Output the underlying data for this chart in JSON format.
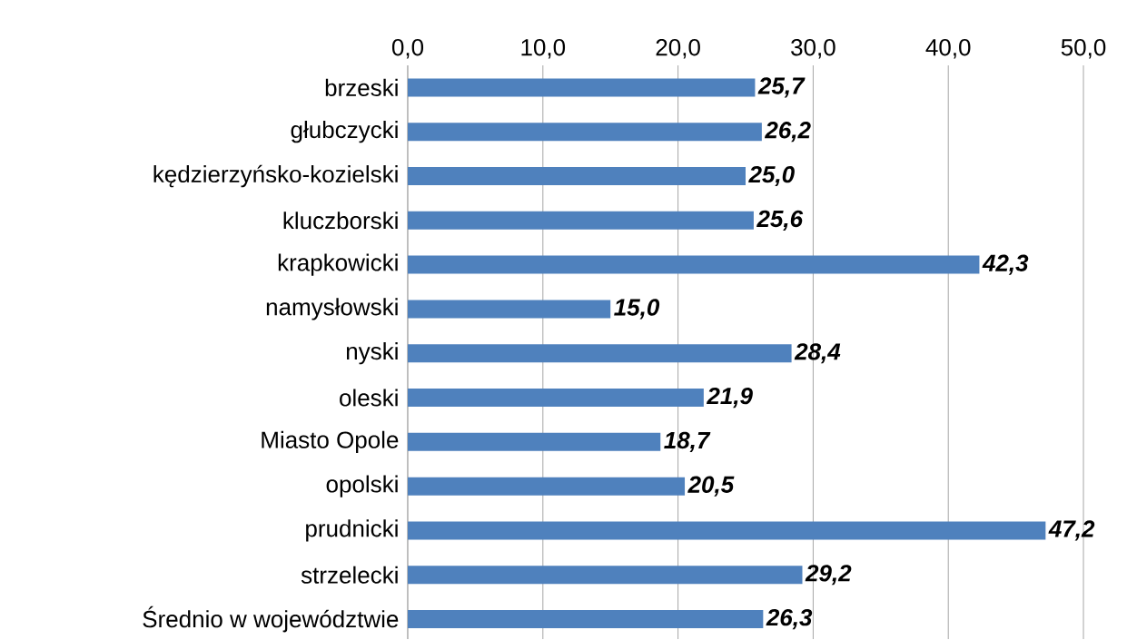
{
  "chart_data": {
    "type": "bar",
    "orientation": "horizontal",
    "categories": [
      "brzeski",
      "głubczycki",
      "kędzierzyńsko-kozielski",
      "kluczborski",
      "krapkowicki",
      "namysłowski",
      "nyski",
      "oleski",
      "Miasto Opole",
      "opolski",
      "prudnicki",
      "strzelecki",
      "Średnio w województwie"
    ],
    "values": [
      25.7,
      26.2,
      25.0,
      25.6,
      42.3,
      15.0,
      28.4,
      21.9,
      18.7,
      20.5,
      47.2,
      29.2,
      26.3
    ],
    "value_labels": [
      "25,7",
      "26,2",
      "25,0",
      "25,6",
      "42,3",
      "15,0",
      "28,4",
      "21,9",
      "18,7",
      "20,5",
      "47,2",
      "29,2",
      "26,3"
    ],
    "color": "#4f81bd",
    "xlim": [
      0,
      50
    ],
    "xticks": [
      {
        "value": 0,
        "label": "0,0"
      },
      {
        "value": 10,
        "label": "10,0"
      },
      {
        "value": 20,
        "label": "20,0"
      },
      {
        "value": 30,
        "label": "30,0"
      },
      {
        "value": 40,
        "label": "40,0"
      },
      {
        "value": 50,
        "label": "50,0"
      }
    ],
    "grid": "x"
  }
}
